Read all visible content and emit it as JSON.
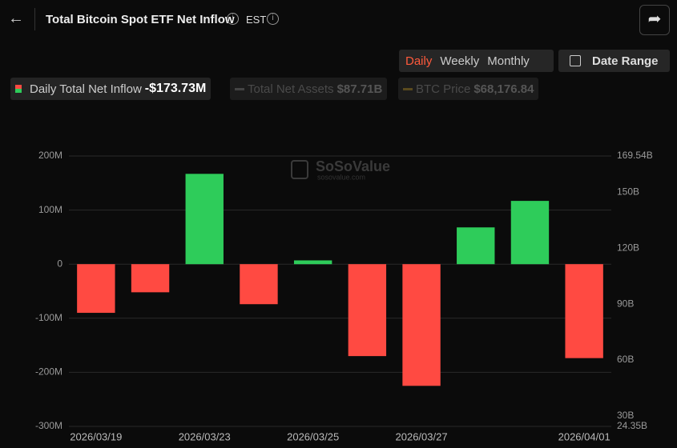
{
  "header": {
    "title": "Total Bitcoin Spot ETF Net Inflow",
    "timezone": "EST"
  },
  "tabs": [
    "Daily",
    "Weekly",
    "Monthly"
  ],
  "date_range": "Date Range",
  "legend": [
    {
      "name": "Daily Total Net Inflow",
      "value": "-$173.73M"
    },
    {
      "name": "Total Net Assets",
      "value": "$87.71B"
    },
    {
      "name": "BTC Price",
      "value": "$68,176.84"
    }
  ],
  "watermark": {
    "brand": "SoSoValue",
    "site": "sosovalue.com"
  },
  "chart_data": {
    "type": "bar",
    "categories": [
      "2026/03/19",
      null,
      "2026/03/23",
      null,
      "2026/03/25",
      null,
      "2026/03/27",
      null,
      null,
      "2026/04/01"
    ],
    "values": [
      -90,
      -52,
      167,
      -74,
      7,
      -170,
      -225,
      68,
      117,
      -173.73
    ],
    "positive_color": "#2ecc5a",
    "negative_color": "#ff4a42",
    "ylim": [
      -300,
      200
    ],
    "yticks": [
      {
        "value": -300,
        "label": "-300M"
      },
      {
        "value": -200,
        "label": "-200M"
      },
      {
        "value": -100,
        "label": "-100M"
      },
      0,
      {
        "value": 100,
        "label": "100M"
      },
      {
        "value": 200,
        "label": "200M"
      }
    ],
    "y2lim": [
      24.35,
      169.54
    ],
    "y2ticks": [
      {
        "value": 24.35,
        "label": "24.35B"
      },
      {
        "value": 30,
        "label": "30B"
      },
      {
        "value": 60,
        "label": "60B"
      },
      {
        "value": 90,
        "label": "90B"
      },
      {
        "value": 120,
        "label": "120B"
      },
      {
        "value": 150,
        "label": "150B"
      },
      {
        "value": 169.54,
        "label": "169.54B"
      }
    ],
    "grid": true
  }
}
